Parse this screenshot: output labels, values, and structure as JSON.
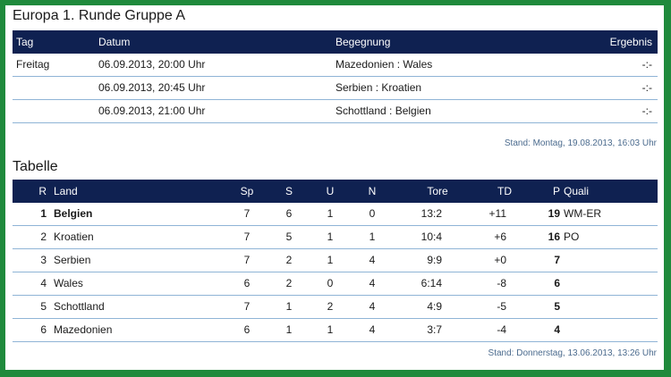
{
  "matches": {
    "title": "Europa 1. Runde Gruppe A",
    "headers": {
      "tag": "Tag",
      "datum": "Datum",
      "begegnung": "Begegnung",
      "ergebnis": "Ergebnis"
    },
    "rows": [
      {
        "tag": "Freitag",
        "datum": "06.09.2013, 20:00 Uhr",
        "begegnung": "Mazedonien : Wales",
        "ergebnis": "-:-"
      },
      {
        "tag": "",
        "datum": "06.09.2013, 20:45 Uhr",
        "begegnung": "Serbien : Kroatien",
        "ergebnis": "-:-"
      },
      {
        "tag": "",
        "datum": "06.09.2013, 21:00 Uhr",
        "begegnung": "Schottland : Belgien",
        "ergebnis": "-:-"
      }
    ],
    "stand": "Stand: Montag, 19.08.2013, 16:03 Uhr"
  },
  "table": {
    "title": "Tabelle",
    "headers": {
      "r": "R",
      "land": "Land",
      "sp": "Sp",
      "s": "S",
      "u": "U",
      "n": "N",
      "tore": "Tore",
      "td": "TD",
      "p": "P",
      "quali": "Quali"
    },
    "rows": [
      {
        "r": "1",
        "land": "Belgien",
        "sp": "7",
        "s": "6",
        "u": "1",
        "n": "0",
        "tore": "13:2",
        "td": "+11",
        "p": "19",
        "quali": "WM-ER"
      },
      {
        "r": "2",
        "land": "Kroatien",
        "sp": "7",
        "s": "5",
        "u": "1",
        "n": "1",
        "tore": "10:4",
        "td": "+6",
        "p": "16",
        "quali": "PO"
      },
      {
        "r": "3",
        "land": "Serbien",
        "sp": "7",
        "s": "2",
        "u": "1",
        "n": "4",
        "tore": "9:9",
        "td": "+0",
        "p": "7",
        "quali": ""
      },
      {
        "r": "4",
        "land": "Wales",
        "sp": "6",
        "s": "2",
        "u": "0",
        "n": "4",
        "tore": "6:14",
        "td": "-8",
        "p": "6",
        "quali": ""
      },
      {
        "r": "5",
        "land": "Schottland",
        "sp": "7",
        "s": "1",
        "u": "2",
        "n": "4",
        "tore": "4:9",
        "td": "-5",
        "p": "5",
        "quali": ""
      },
      {
        "r": "6",
        "land": "Mazedonien",
        "sp": "6",
        "s": "1",
        "u": "1",
        "n": "4",
        "tore": "3:7",
        "td": "-4",
        "p": "4",
        "quali": ""
      }
    ],
    "stand": "Stand: Donnerstag, 13.06.2013, 13:26 Uhr"
  },
  "colors": {
    "header_bg": "#0f2151",
    "frame": "#1f8a3c",
    "row_line": "#8fb4d6",
    "stand_text": "#4b6b8e"
  }
}
